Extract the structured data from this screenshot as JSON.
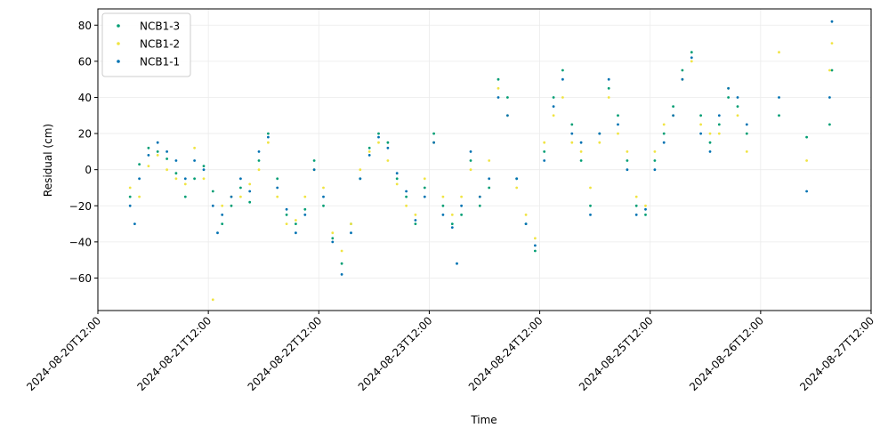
{
  "chart_data": {
    "type": "scatter",
    "xlabel": "Time",
    "ylabel": "Residual (cm)",
    "xlim": [
      "2024-08-20T12:00",
      "2024-08-27T12:00"
    ],
    "ylim": [
      -78,
      89
    ],
    "x_ticks": [
      "2024-08-20T12:00",
      "2024-08-21T12:00",
      "2024-08-22T12:00",
      "2024-08-23T12:00",
      "2024-08-24T12:00",
      "2024-08-25T12:00",
      "2024-08-26T12:00",
      "2024-08-27T12:00"
    ],
    "y_ticks": [
      -60,
      -40,
      -20,
      0,
      20,
      40,
      60,
      80
    ],
    "grid": true,
    "legend_position": "top-left",
    "series": [
      {
        "name": "NCB1-3",
        "color": "#009E73",
        "points": [
          [
            "2024-08-20T19:00",
            -15
          ],
          [
            "2024-08-20T21:00",
            3
          ],
          [
            "2024-08-20T23:00",
            12
          ],
          [
            "2024-08-21T01:00",
            10
          ],
          [
            "2024-08-21T03:00",
            6
          ],
          [
            "2024-08-21T05:00",
            -2
          ],
          [
            "2024-08-21T07:00",
            -15
          ],
          [
            "2024-08-21T09:00",
            -5
          ],
          [
            "2024-08-21T11:00",
            2
          ],
          [
            "2024-08-21T13:00",
            -12
          ],
          [
            "2024-08-21T15:00",
            -30
          ],
          [
            "2024-08-21T17:00",
            -20
          ],
          [
            "2024-08-21T19:00",
            -10
          ],
          [
            "2024-08-21T21:00",
            -18
          ],
          [
            "2024-08-21T23:00",
            5
          ],
          [
            "2024-08-22T01:00",
            20
          ],
          [
            "2024-08-22T03:00",
            -5
          ],
          [
            "2024-08-22T05:00",
            -25
          ],
          [
            "2024-08-22T07:00",
            -30
          ],
          [
            "2024-08-22T09:00",
            -22
          ],
          [
            "2024-08-22T11:00",
            5
          ],
          [
            "2024-08-22T13:00",
            -20
          ],
          [
            "2024-08-22T15:00",
            -38
          ],
          [
            "2024-08-22T17:00",
            -52
          ],
          [
            "2024-08-22T19:00",
            -30
          ],
          [
            "2024-08-22T21:00",
            -5
          ],
          [
            "2024-08-22T23:00",
            12
          ],
          [
            "2024-08-23T01:00",
            20
          ],
          [
            "2024-08-23T03:00",
            15
          ],
          [
            "2024-08-23T05:00",
            -5
          ],
          [
            "2024-08-23T07:00",
            -15
          ],
          [
            "2024-08-23T09:00",
            -30
          ],
          [
            "2024-08-23T11:00",
            -10
          ],
          [
            "2024-08-23T13:00",
            20
          ],
          [
            "2024-08-23T15:00",
            -20
          ],
          [
            "2024-08-23T17:00",
            -30
          ],
          [
            "2024-08-23T19:00",
            -25
          ],
          [
            "2024-08-23T21:00",
            5
          ],
          [
            "2024-08-23T23:00",
            -20
          ],
          [
            "2024-08-24T01:00",
            -10
          ],
          [
            "2024-08-24T03:00",
            50
          ],
          [
            "2024-08-24T05:00",
            40
          ],
          [
            "2024-08-24T07:00",
            -5
          ],
          [
            "2024-08-24T09:00",
            -30
          ],
          [
            "2024-08-24T11:00",
            -45
          ],
          [
            "2024-08-24T13:00",
            10
          ],
          [
            "2024-08-24T15:00",
            40
          ],
          [
            "2024-08-24T17:00",
            55
          ],
          [
            "2024-08-24T19:00",
            25
          ],
          [
            "2024-08-24T21:00",
            5
          ],
          [
            "2024-08-24T23:00",
            -20
          ],
          [
            "2024-08-25T01:00",
            20
          ],
          [
            "2024-08-25T03:00",
            45
          ],
          [
            "2024-08-25T05:00",
            30
          ],
          [
            "2024-08-25T07:00",
            5
          ],
          [
            "2024-08-25T09:00",
            -20
          ],
          [
            "2024-08-25T11:00",
            -25
          ],
          [
            "2024-08-25T13:00",
            5
          ],
          [
            "2024-08-25T15:00",
            20
          ],
          [
            "2024-08-25T17:00",
            35
          ],
          [
            "2024-08-25T19:00",
            55
          ],
          [
            "2024-08-25T21:00",
            65
          ],
          [
            "2024-08-25T23:00",
            30
          ],
          [
            "2024-08-26T01:00",
            15
          ],
          [
            "2024-08-26T03:00",
            25
          ],
          [
            "2024-08-26T05:00",
            40
          ],
          [
            "2024-08-26T07:00",
            35
          ],
          [
            "2024-08-26T09:00",
            20
          ],
          [
            "2024-08-26T16:00",
            30
          ],
          [
            "2024-08-26T22:00",
            18
          ],
          [
            "2024-08-27T03:00",
            25
          ],
          [
            "2024-08-27T03:30",
            55
          ]
        ]
      },
      {
        "name": "NCB1-2",
        "color": "#F0E442",
        "points": [
          [
            "2024-08-20T19:00",
            -10
          ],
          [
            "2024-08-20T21:00",
            -15
          ],
          [
            "2024-08-20T23:00",
            2
          ],
          [
            "2024-08-21T01:00",
            8
          ],
          [
            "2024-08-21T03:00",
            0
          ],
          [
            "2024-08-21T05:00",
            -5
          ],
          [
            "2024-08-21T07:00",
            -8
          ],
          [
            "2024-08-21T09:00",
            12
          ],
          [
            "2024-08-21T11:00",
            -5
          ],
          [
            "2024-08-21T13:00",
            -72
          ],
          [
            "2024-08-21T15:00",
            -20
          ],
          [
            "2024-08-21T17:00",
            -15
          ],
          [
            "2024-08-21T19:00",
            -15
          ],
          [
            "2024-08-21T21:00",
            -8
          ],
          [
            "2024-08-21T23:00",
            0
          ],
          [
            "2024-08-22T01:00",
            15
          ],
          [
            "2024-08-22T03:00",
            -15
          ],
          [
            "2024-08-22T05:00",
            -30
          ],
          [
            "2024-08-22T07:00",
            -28
          ],
          [
            "2024-08-22T09:00",
            -15
          ],
          [
            "2024-08-22T11:00",
            0
          ],
          [
            "2024-08-22T13:00",
            -10
          ],
          [
            "2024-08-22T15:00",
            -35
          ],
          [
            "2024-08-22T17:00",
            -45
          ],
          [
            "2024-08-22T19:00",
            -30
          ],
          [
            "2024-08-22T21:00",
            0
          ],
          [
            "2024-08-22T23:00",
            10
          ],
          [
            "2024-08-23T01:00",
            15
          ],
          [
            "2024-08-23T03:00",
            5
          ],
          [
            "2024-08-23T05:00",
            -8
          ],
          [
            "2024-08-23T07:00",
            -20
          ],
          [
            "2024-08-23T09:00",
            -25
          ],
          [
            "2024-08-23T11:00",
            -5
          ],
          [
            "2024-08-23T13:00",
            15
          ],
          [
            "2024-08-23T15:00",
            -15
          ],
          [
            "2024-08-23T17:00",
            -25
          ],
          [
            "2024-08-23T19:00",
            -15
          ],
          [
            "2024-08-23T21:00",
            0
          ],
          [
            "2024-08-23T23:00",
            -15
          ],
          [
            "2024-08-24T01:00",
            5
          ],
          [
            "2024-08-24T03:00",
            45
          ],
          [
            "2024-08-24T05:00",
            30
          ],
          [
            "2024-08-24T07:00",
            -10
          ],
          [
            "2024-08-24T09:00",
            -25
          ],
          [
            "2024-08-24T11:00",
            -38
          ],
          [
            "2024-08-24T13:00",
            15
          ],
          [
            "2024-08-24T15:00",
            30
          ],
          [
            "2024-08-24T17:00",
            40
          ],
          [
            "2024-08-24T19:00",
            15
          ],
          [
            "2024-08-24T21:00",
            10
          ],
          [
            "2024-08-24T23:00",
            -10
          ],
          [
            "2024-08-25T01:00",
            15
          ],
          [
            "2024-08-25T03:00",
            40
          ],
          [
            "2024-08-25T05:00",
            20
          ],
          [
            "2024-08-25T07:00",
            10
          ],
          [
            "2024-08-25T09:00",
            -15
          ],
          [
            "2024-08-25T11:00",
            -20
          ],
          [
            "2024-08-25T13:00",
            10
          ],
          [
            "2024-08-25T15:00",
            25
          ],
          [
            "2024-08-25T17:00",
            30
          ],
          [
            "2024-08-25T19:00",
            50
          ],
          [
            "2024-08-25T21:00",
            60
          ],
          [
            "2024-08-25T23:00",
            25
          ],
          [
            "2024-08-26T01:00",
            20
          ],
          [
            "2024-08-26T03:00",
            20
          ],
          [
            "2024-08-26T05:00",
            45
          ],
          [
            "2024-08-26T07:00",
            30
          ],
          [
            "2024-08-26T09:00",
            10
          ],
          [
            "2024-08-26T16:00",
            65
          ],
          [
            "2024-08-26T22:00",
            5
          ],
          [
            "2024-08-27T03:00",
            55
          ],
          [
            "2024-08-27T03:30",
            70
          ]
        ]
      },
      {
        "name": "NCB1-1",
        "color": "#0072B2",
        "points": [
          [
            "2024-08-20T19:00",
            -20
          ],
          [
            "2024-08-20T20:00",
            -30
          ],
          [
            "2024-08-20T21:00",
            -5
          ],
          [
            "2024-08-20T23:00",
            8
          ],
          [
            "2024-08-21T01:00",
            15
          ],
          [
            "2024-08-21T03:00",
            10
          ],
          [
            "2024-08-21T05:00",
            5
          ],
          [
            "2024-08-21T07:00",
            -5
          ],
          [
            "2024-08-21T09:00",
            5
          ],
          [
            "2024-08-21T11:00",
            0
          ],
          [
            "2024-08-21T13:00",
            -20
          ],
          [
            "2024-08-21T14:00",
            -35
          ],
          [
            "2024-08-21T15:00",
            -25
          ],
          [
            "2024-08-21T17:00",
            -15
          ],
          [
            "2024-08-21T19:00",
            -5
          ],
          [
            "2024-08-21T21:00",
            -12
          ],
          [
            "2024-08-21T23:00",
            10
          ],
          [
            "2024-08-22T01:00",
            18
          ],
          [
            "2024-08-22T03:00",
            -10
          ],
          [
            "2024-08-22T05:00",
            -22
          ],
          [
            "2024-08-22T07:00",
            -35
          ],
          [
            "2024-08-22T09:00",
            -25
          ],
          [
            "2024-08-22T11:00",
            0
          ],
          [
            "2024-08-22T13:00",
            -15
          ],
          [
            "2024-08-22T15:00",
            -40
          ],
          [
            "2024-08-22T17:00",
            -58
          ],
          [
            "2024-08-22T19:00",
            -35
          ],
          [
            "2024-08-22T21:00",
            -5
          ],
          [
            "2024-08-22T23:00",
            8
          ],
          [
            "2024-08-23T01:00",
            18
          ],
          [
            "2024-08-23T03:00",
            12
          ],
          [
            "2024-08-23T05:00",
            -2
          ],
          [
            "2024-08-23T07:00",
            -12
          ],
          [
            "2024-08-23T09:00",
            -28
          ],
          [
            "2024-08-23T11:00",
            -15
          ],
          [
            "2024-08-23T13:00",
            15
          ],
          [
            "2024-08-23T15:00",
            -25
          ],
          [
            "2024-08-23T17:00",
            -32
          ],
          [
            "2024-08-23T18:00",
            -52
          ],
          [
            "2024-08-23T19:00",
            -20
          ],
          [
            "2024-08-23T21:00",
            10
          ],
          [
            "2024-08-23T23:00",
            -15
          ],
          [
            "2024-08-24T01:00",
            -5
          ],
          [
            "2024-08-24T03:00",
            40
          ],
          [
            "2024-08-24T05:00",
            30
          ],
          [
            "2024-08-24T07:00",
            -5
          ],
          [
            "2024-08-24T09:00",
            -30
          ],
          [
            "2024-08-24T11:00",
            -42
          ],
          [
            "2024-08-24T13:00",
            5
          ],
          [
            "2024-08-24T15:00",
            35
          ],
          [
            "2024-08-24T17:00",
            50
          ],
          [
            "2024-08-24T19:00",
            20
          ],
          [
            "2024-08-24T21:00",
            15
          ],
          [
            "2024-08-24T23:00",
            -25
          ],
          [
            "2024-08-25T01:00",
            20
          ],
          [
            "2024-08-25T03:00",
            50
          ],
          [
            "2024-08-25T05:00",
            25
          ],
          [
            "2024-08-25T07:00",
            0
          ],
          [
            "2024-08-25T09:00",
            -25
          ],
          [
            "2024-08-25T11:00",
            -22
          ],
          [
            "2024-08-25T13:00",
            0
          ],
          [
            "2024-08-25T15:00",
            15
          ],
          [
            "2024-08-25T17:00",
            30
          ],
          [
            "2024-08-25T19:00",
            50
          ],
          [
            "2024-08-25T21:00",
            62
          ],
          [
            "2024-08-25T23:00",
            20
          ],
          [
            "2024-08-26T01:00",
            10
          ],
          [
            "2024-08-26T03:00",
            30
          ],
          [
            "2024-08-26T05:00",
            45
          ],
          [
            "2024-08-26T07:00",
            40
          ],
          [
            "2024-08-26T09:00",
            25
          ],
          [
            "2024-08-26T16:00",
            40
          ],
          [
            "2024-08-26T22:00",
            -12
          ],
          [
            "2024-08-27T03:00",
            40
          ],
          [
            "2024-08-27T03:30",
            82
          ]
        ]
      }
    ]
  }
}
